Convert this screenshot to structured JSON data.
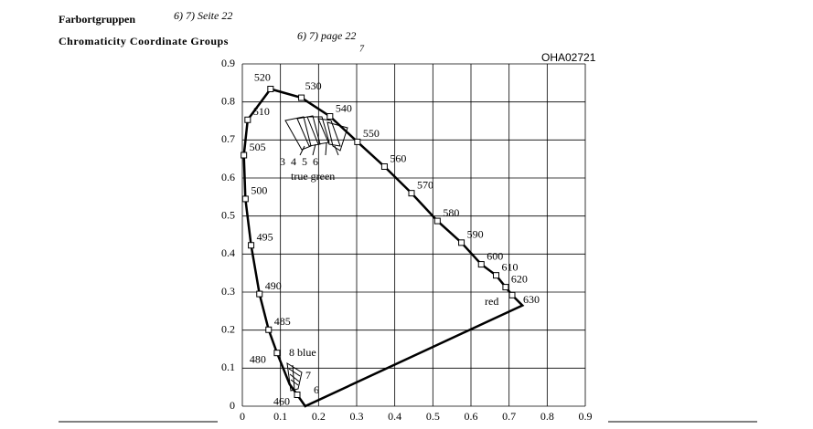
{
  "header": {
    "title_de": "Farbortgruppen",
    "ref_de": "6) 7) Seite 22",
    "title_en": "Chromaticity Coordinate Groups",
    "ref_en": "6) 7) page 22",
    "ref_note": "7",
    "code": "OHA02721"
  },
  "chart_data": {
    "type": "line",
    "x": [
      0.144,
      0.124,
      0.091,
      0.069,
      0.045,
      0.023,
      0.008,
      0.004,
      0.014,
      0.074,
      0.155,
      0.23,
      0.302,
      0.373,
      0.444,
      0.512,
      0.575,
      0.627,
      0.666,
      0.691,
      0.708,
      0.735,
      0.165,
      0.144
    ],
    "series": [
      {
        "name": null,
        "color": "#000000",
        "values": [
          0.03,
          0.058,
          0.14,
          0.201,
          0.295,
          0.423,
          0.545,
          0.66,
          0.753,
          0.834,
          0.811,
          0.762,
          0.695,
          0.63,
          0.56,
          0.487,
          0.43,
          0.373,
          0.344,
          0.313,
          0.292,
          0.265,
          0.0,
          0.03
        ],
        "point_labels": [
          "460",
          null,
          "480",
          "485",
          "490",
          "495",
          "500",
          "505",
          "510",
          "520",
          "530",
          "540",
          "550",
          "560",
          "570",
          "580",
          "590",
          "600",
          "610",
          "620",
          "630",
          null,
          null,
          null
        ]
      }
    ],
    "xlim": [
      0,
      0.9
    ],
    "ylim": [
      0,
      0.9
    ],
    "xticks": [
      0,
      0.1,
      0.2,
      0.3,
      0.4,
      0.5,
      0.6,
      0.7,
      0.8,
      0.9
    ],
    "yticks": [
      0,
      0.1,
      0.2,
      0.3,
      0.4,
      0.5,
      0.6,
      0.7,
      0.8,
      0.9
    ],
    "grid": true,
    "annotations": [
      "3",
      "4",
      "5",
      "6",
      "true green",
      "8 blue",
      "7",
      "6",
      "red"
    ]
  }
}
